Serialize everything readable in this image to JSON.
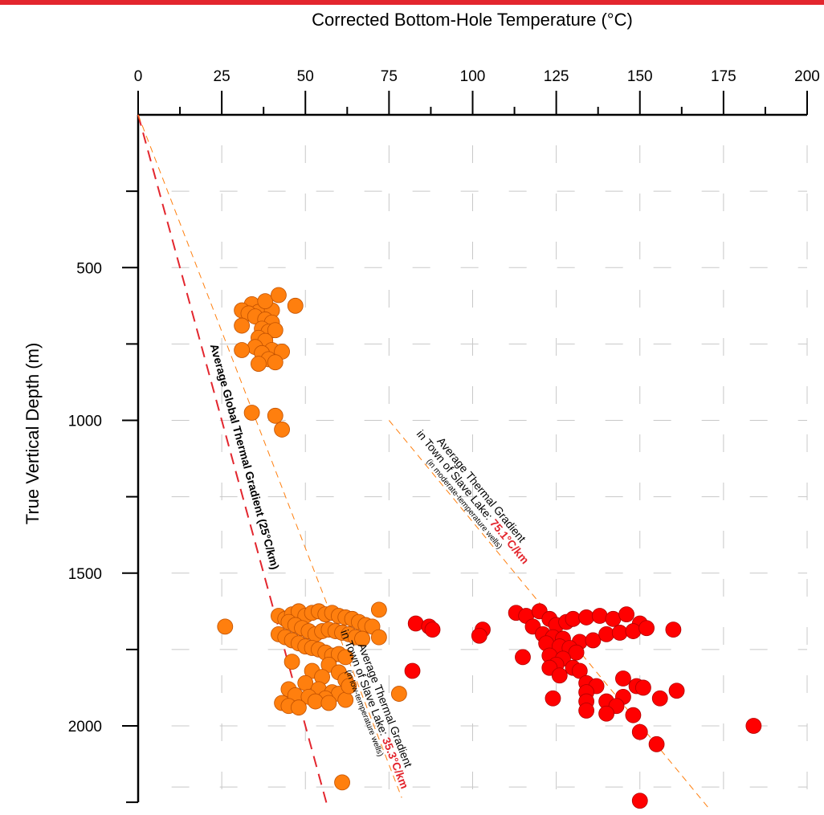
{
  "chart_data": {
    "type": "scatter",
    "title": "",
    "xlabel": "Corrected Bottom-Hole Temperature (°C)",
    "ylabel": "True Vertical Depth (m)",
    "x_axis_position": "top",
    "y_axis_inverted": true,
    "xlim": [
      0,
      200
    ],
    "ylim": [
      0,
      2250
    ],
    "x_ticks": [
      0,
      25,
      50,
      75,
      100,
      125,
      150,
      175,
      200
    ],
    "x_tick_labels": [
      "0",
      "25",
      "50",
      "75",
      "100",
      "125",
      "150",
      "175",
      "200"
    ],
    "y_ticks": [
      500,
      1000,
      1500,
      2000
    ],
    "y_tick_labels": [
      "500",
      "1000",
      "1500",
      "2000"
    ],
    "grid": true,
    "series": [
      {
        "color": "#ff7f0e",
        "points": [
          [
            34,
            620
          ],
          [
            31,
            640
          ],
          [
            36,
            645
          ],
          [
            40,
            640
          ],
          [
            38,
            610
          ],
          [
            42,
            590
          ],
          [
            47,
            625
          ],
          [
            33,
            650
          ],
          [
            35,
            660
          ],
          [
            38,
            670
          ],
          [
            40,
            680
          ],
          [
            31,
            690
          ],
          [
            37,
            700
          ],
          [
            39,
            710
          ],
          [
            41,
            705
          ],
          [
            36,
            730
          ],
          [
            38,
            740
          ],
          [
            35,
            760
          ],
          [
            40,
            770
          ],
          [
            37,
            780
          ],
          [
            31,
            770
          ],
          [
            43,
            775
          ],
          [
            39,
            800
          ],
          [
            41,
            810
          ],
          [
            36,
            815
          ],
          [
            34,
            975
          ],
          [
            41,
            985
          ],
          [
            43,
            1030
          ],
          [
            26,
            1675
          ],
          [
            42,
            1640
          ],
          [
            44,
            1650
          ],
          [
            46,
            1635
          ],
          [
            48,
            1625
          ],
          [
            50,
            1640
          ],
          [
            52,
            1630
          ],
          [
            54,
            1625
          ],
          [
            56,
            1635
          ],
          [
            58,
            1630
          ],
          [
            60,
            1640
          ],
          [
            62,
            1645
          ],
          [
            64,
            1650
          ],
          [
            66,
            1660
          ],
          [
            68,
            1670
          ],
          [
            70,
            1675
          ],
          [
            72,
            1620
          ],
          [
            45,
            1660
          ],
          [
            47,
            1670
          ],
          [
            49,
            1680
          ],
          [
            51,
            1690
          ],
          [
            53,
            1700
          ],
          [
            55,
            1690
          ],
          [
            57,
            1685
          ],
          [
            59,
            1690
          ],
          [
            61,
            1695
          ],
          [
            63,
            1700
          ],
          [
            65,
            1710
          ],
          [
            67,
            1715
          ],
          [
            72,
            1710
          ],
          [
            42,
            1700
          ],
          [
            44,
            1710
          ],
          [
            46,
            1720
          ],
          [
            48,
            1730
          ],
          [
            50,
            1740
          ],
          [
            52,
            1745
          ],
          [
            54,
            1750
          ],
          [
            56,
            1760
          ],
          [
            58,
            1770
          ],
          [
            60,
            1765
          ],
          [
            62,
            1775
          ],
          [
            46,
            1790
          ],
          [
            57,
            1800
          ],
          [
            52,
            1820
          ],
          [
            60,
            1825
          ],
          [
            55,
            1840
          ],
          [
            50,
            1860
          ],
          [
            62,
            1850
          ],
          [
            45,
            1880
          ],
          [
            54,
            1880
          ],
          [
            58,
            1890
          ],
          [
            60,
            1895
          ],
          [
            47,
            1900
          ],
          [
            51,
            1905
          ],
          [
            56,
            1910
          ],
          [
            62,
            1915
          ],
          [
            43,
            1925
          ],
          [
            45,
            1935
          ],
          [
            48,
            1940
          ],
          [
            53,
            1920
          ],
          [
            57,
            1925
          ],
          [
            63,
            1870
          ],
          [
            78,
            1895
          ],
          [
            61,
            2185
          ]
        ]
      },
      {
        "color": "#ff0000",
        "points": [
          [
            83,
            1665
          ],
          [
            87,
            1675
          ],
          [
            88,
            1685
          ],
          [
            82,
            1820
          ],
          [
            103,
            1685
          ],
          [
            102,
            1705
          ],
          [
            113,
            1630
          ],
          [
            116,
            1640
          ],
          [
            120,
            1625
          ],
          [
            123,
            1650
          ],
          [
            118,
            1675
          ],
          [
            125,
            1670
          ],
          [
            128,
            1660
          ],
          [
            130,
            1650
          ],
          [
            134,
            1645
          ],
          [
            138,
            1640
          ],
          [
            142,
            1650
          ],
          [
            146,
            1635
          ],
          [
            150,
            1665
          ],
          [
            160,
            1685
          ],
          [
            121,
            1700
          ],
          [
            124,
            1710
          ],
          [
            127,
            1715
          ],
          [
            132,
            1725
          ],
          [
            136,
            1720
          ],
          [
            140,
            1700
          ],
          [
            144,
            1695
          ],
          [
            148,
            1690
          ],
          [
            152,
            1680
          ],
          [
            122,
            1730
          ],
          [
            126,
            1740
          ],
          [
            129,
            1745
          ],
          [
            131,
            1760
          ],
          [
            123,
            1770
          ],
          [
            127,
            1780
          ],
          [
            125,
            1800
          ],
          [
            130,
            1810
          ],
          [
            115,
            1775
          ],
          [
            123,
            1810
          ],
          [
            132,
            1820
          ],
          [
            126,
            1835
          ],
          [
            134,
            1860
          ],
          [
            137,
            1870
          ],
          [
            145,
            1845
          ],
          [
            149,
            1870
          ],
          [
            151,
            1875
          ],
          [
            134,
            1890
          ],
          [
            145,
            1905
          ],
          [
            156,
            1910
          ],
          [
            161,
            1885
          ],
          [
            124,
            1910
          ],
          [
            134,
            1920
          ],
          [
            140,
            1920
          ],
          [
            143,
            1935
          ],
          [
            134,
            1950
          ],
          [
            140,
            1960
          ],
          [
            148,
            1965
          ],
          [
            150,
            2020
          ],
          [
            155,
            2060
          ],
          [
            184,
            2000
          ],
          [
            150,
            2245
          ]
        ]
      }
    ],
    "reference_lines": [
      {
        "label_text": "Average Global Thermal Gradient (25°C/km)",
        "color": "#e3262e",
        "style": "dashed",
        "gradient_c_per_km": 25,
        "from": [
          0,
          0
        ],
        "to": [
          56.5,
          2260
        ]
      },
      {
        "label_line1": "Average Thermal Gradient",
        "label_line2_prefix": "in Town of Slave Lake: ",
        "label_value": "35.3°C/km",
        "label_line3": "(in low-temperature wells)",
        "color": "#ff7f0e",
        "style": "dashed",
        "gradient_c_per_km": 35.3,
        "from": [
          0,
          0
        ],
        "to": [
          78.8,
          2235
        ]
      },
      {
        "label_line1": "Average Thermal Gradient",
        "label_line2_prefix": "in Town of Slave Lake: ",
        "label_value": "75.1°C/km",
        "label_line3": "(in moderate-temperature wells)",
        "color": "#ff7f0e",
        "style": "dashed",
        "gradient_c_per_km": 75.1,
        "from": [
          75,
          1000
        ],
        "to": [
          171,
          2275
        ]
      }
    ]
  }
}
